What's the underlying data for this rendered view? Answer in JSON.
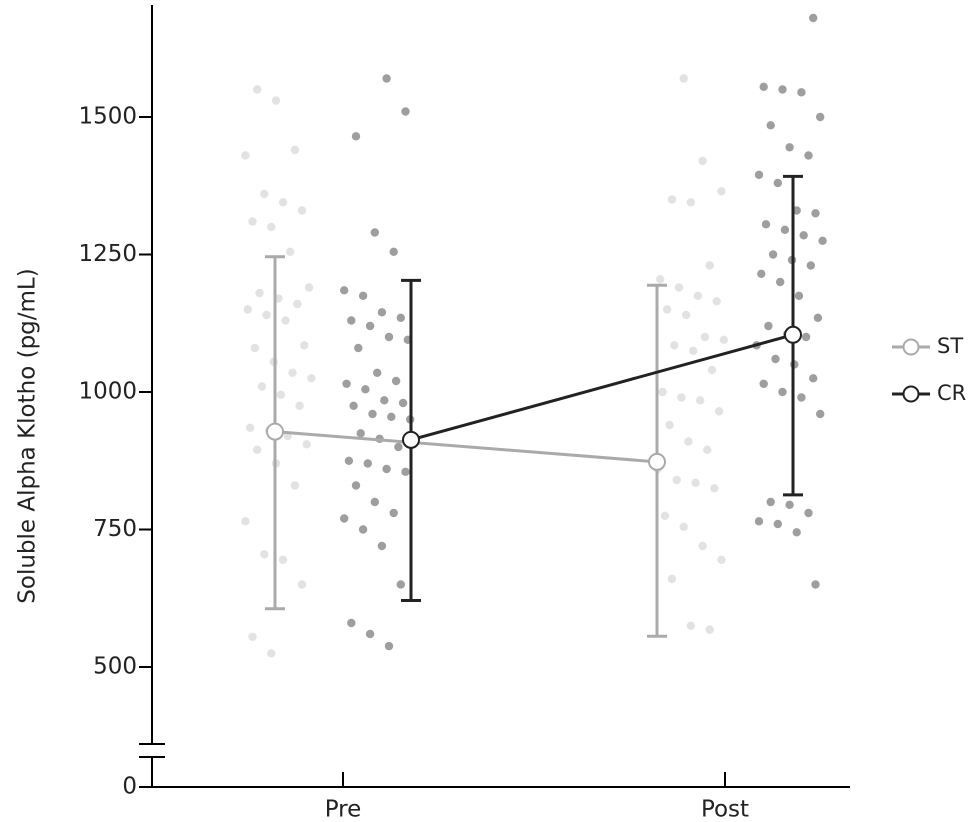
{
  "chart_data": {
    "type": "scatter",
    "title": "",
    "ylabel": "Soluble Alpha Klotho (pg/mL)",
    "xlabel": "",
    "categories": [
      "Pre",
      "Post"
    ],
    "y_ticks": [
      0,
      500,
      750,
      1000,
      1250,
      1500
    ],
    "y_axis_break": "between 0 and 500",
    "ylim_display": [
      450,
      1700
    ],
    "grid": false,
    "legend_position": "right",
    "series": [
      {
        "name": "ST",
        "color": "#aaaaaa",
        "mean": [
          928,
          873
        ],
        "err_low": [
          606,
          556
        ],
        "err_high": [
          1246,
          1194
        ],
        "points": {
          "Pre": [
            1550,
            1530,
            1440,
            1430,
            1360,
            1345,
            1330,
            1310,
            1300,
            1255,
            1190,
            1180,
            1170,
            1160,
            1150,
            1140,
            1130,
            1085,
            1080,
            1055,
            1035,
            1025,
            1010,
            995,
            975,
            935,
            930,
            920,
            905,
            895,
            870,
            830,
            765,
            705,
            695,
            650,
            555,
            525
          ],
          "Post": [
            1570,
            1420,
            1365,
            1350,
            1345,
            1230,
            1205,
            1190,
            1175,
            1165,
            1150,
            1140,
            1100,
            1095,
            1085,
            1075,
            1040,
            1000,
            990,
            985,
            965,
            940,
            910,
            895,
            860,
            840,
            835,
            825,
            775,
            755,
            720,
            695,
            660,
            575,
            568
          ]
        }
      },
      {
        "name": "CR",
        "color": "#222222",
        "mean": [
          913,
          1104
        ],
        "err_low": [
          621,
          813
        ],
        "err_high": [
          1203,
          1392
        ],
        "points": {
          "Pre": [
            1570,
            1510,
            1465,
            1290,
            1255,
            1185,
            1175,
            1145,
            1135,
            1130,
            1120,
            1100,
            1095,
            1080,
            1035,
            1020,
            1015,
            1005,
            985,
            980,
            975,
            960,
            955,
            950,
            925,
            915,
            900,
            875,
            870,
            860,
            855,
            830,
            800,
            780,
            770,
            750,
            720,
            650,
            580,
            560,
            538
          ],
          "Post": [
            1680,
            1555,
            1550,
            1545,
            1500,
            1485,
            1445,
            1430,
            1395,
            1380,
            1330,
            1325,
            1305,
            1295,
            1285,
            1275,
            1250,
            1240,
            1230,
            1215,
            1200,
            1175,
            1135,
            1120,
            1105,
            1100,
            1085,
            1060,
            1050,
            1025,
            1015,
            1000,
            990,
            960,
            800,
            795,
            780,
            765,
            760,
            745,
            650
          ]
        }
      }
    ],
    "point_offsets": {
      "ST": {
        "Pre": -0.34,
        "Post": -0.18
      },
      "CR": {
        "Pre": 0.18,
        "Post": 0.34
      }
    }
  }
}
